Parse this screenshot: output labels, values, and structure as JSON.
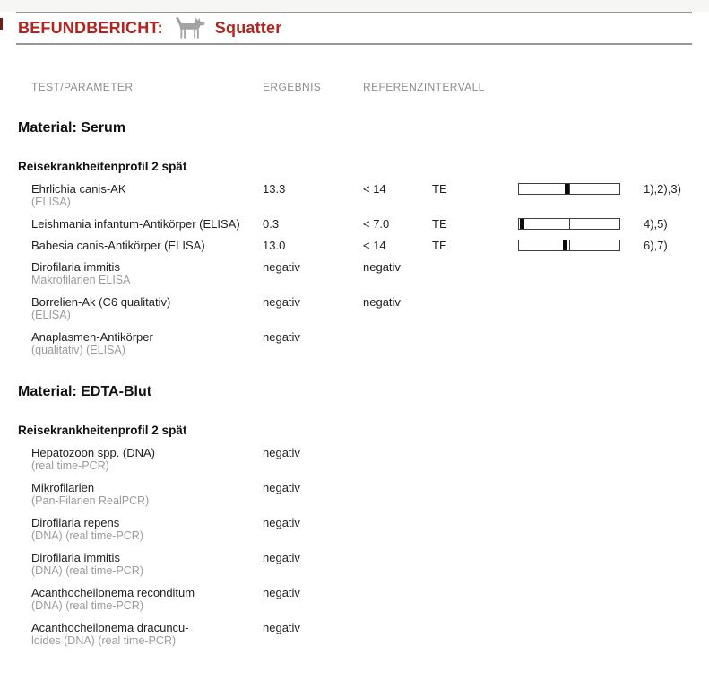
{
  "colors": {
    "accent": "#b5231f",
    "rule_gray": "#979797",
    "muted_gray": "#8c8c8c",
    "bar_marker": "#0b0b0b"
  },
  "header": {
    "title": "BEFUNDBERICHT:",
    "patient_name": "Squatter",
    "icon": "dog-silhouette-icon"
  },
  "columns": {
    "test": "TEST/PARAMETER",
    "result": "ERGEBNIS",
    "reference": "REFERENZINTERVALL"
  },
  "sections": [
    {
      "material": "Material: Serum",
      "profile": "Reisekrankheitenprofil 2 spät",
      "rows": [
        {
          "name": "Ehrlichia canis-AK",
          "sub": "(ELISA)",
          "result": "13.3",
          "reference": "< 14",
          "unit": "TE",
          "bar": {
            "marker_pct": 47.5,
            "divider_pct": 50
          },
          "footnote": "1),2),3)"
        },
        {
          "name": "Leishmania infantum-Antikörper (ELISA)",
          "sub": "",
          "result": "0.3",
          "reference": "< 7.0",
          "unit": "TE",
          "bar": {
            "marker_pct": 3,
            "divider_pct": 50
          },
          "footnote": "4),5)"
        },
        {
          "name": "Babesia canis-Antikörper (ELISA)",
          "sub": "",
          "result": "13.0",
          "reference": "< 14",
          "unit": "TE",
          "bar": {
            "marker_pct": 46,
            "divider_pct": 50
          },
          "footnote": "6),7)"
        },
        {
          "name": "Dirofilaria immitis",
          "sub": "Makrofilarien ELISA",
          "result": "negativ",
          "reference": "negativ",
          "unit": "",
          "footnote": ""
        },
        {
          "name": "Borrelien-Ak (C6 qualitativ)",
          "sub": "(ELISA)",
          "result": "negativ",
          "reference": "negativ",
          "unit": "",
          "footnote": ""
        },
        {
          "name": "Anaplasmen-Antikörper",
          "sub": "(qualitativ) (ELISA)",
          "result": "negativ",
          "reference": "",
          "unit": "",
          "footnote": ""
        }
      ]
    },
    {
      "material": "Material: EDTA-Blut",
      "profile": "Reisekrankheitenprofil 2 spät",
      "rows": [
        {
          "name": "Hepatozoon spp. (DNA)",
          "sub": "(real time-PCR)",
          "result": "negativ",
          "reference": "",
          "unit": "",
          "footnote": ""
        },
        {
          "name": "Mikrofilarien",
          "sub": "(Pan-Filarien RealPCR)",
          "result": "negativ",
          "reference": "",
          "unit": "",
          "footnote": ""
        },
        {
          "name": "Dirofilaria repens",
          "sub": "(DNA) (real time-PCR)",
          "result": "negativ",
          "reference": "",
          "unit": "",
          "footnote": ""
        },
        {
          "name": "Dirofilaria immitis",
          "sub": "(DNA) (real time-PCR)",
          "result": "negativ",
          "reference": "",
          "unit": "",
          "footnote": ""
        },
        {
          "name": "Acanthocheilonema reconditum",
          "sub": "(DNA) (real time-PCR)",
          "result": "negativ",
          "reference": "",
          "unit": "",
          "footnote": ""
        },
        {
          "name": "Acanthocheilonema dracuncu-",
          "sub": "loides (DNA) (real time-PCR)",
          "result": "negativ",
          "reference": "",
          "unit": "",
          "footnote": ""
        }
      ]
    }
  ]
}
